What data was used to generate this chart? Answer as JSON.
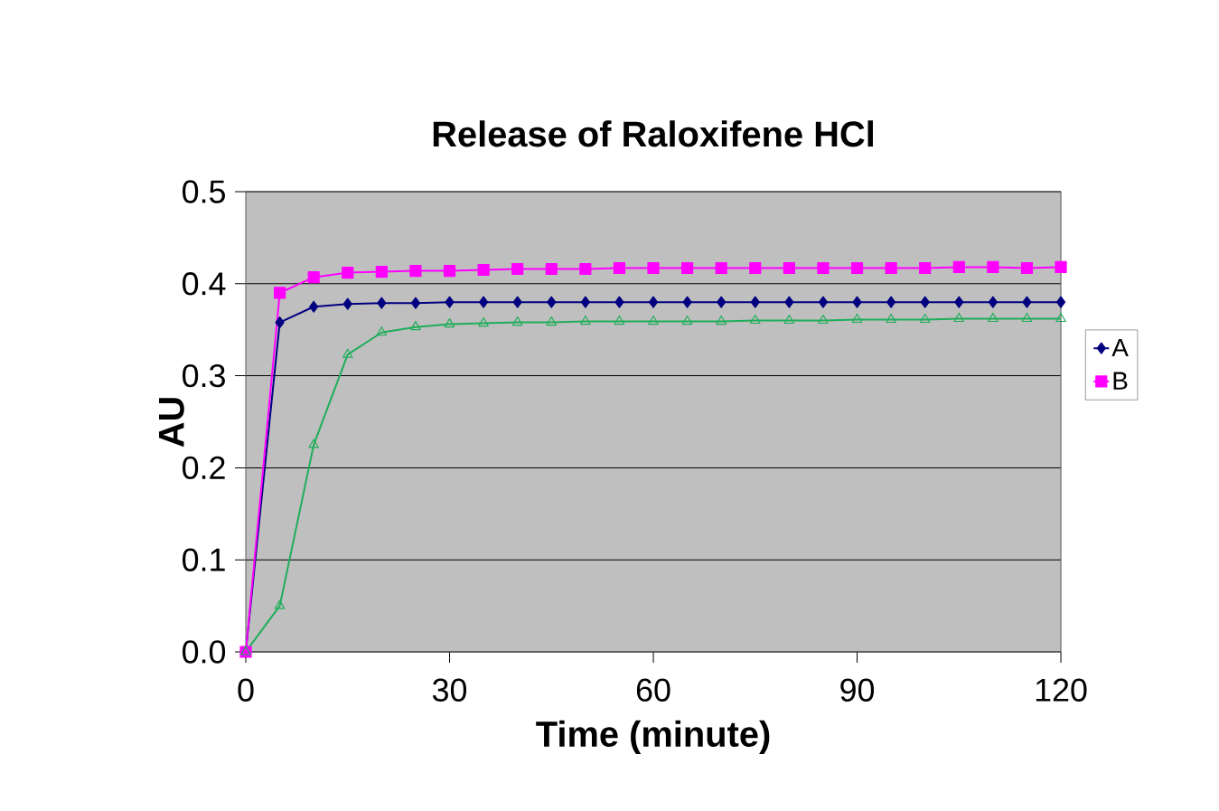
{
  "chart_data": {
    "type": "line",
    "title": "Release of Raloxifene HCl",
    "xlabel": "Time (minute)",
    "ylabel": "AU",
    "x": [
      0,
      5,
      10,
      15,
      20,
      25,
      30,
      35,
      40,
      45,
      50,
      55,
      60,
      65,
      70,
      75,
      80,
      85,
      90,
      95,
      100,
      105,
      110,
      115,
      120
    ],
    "series": [
      {
        "name": "A",
        "color": "#000080",
        "marker": "diamond",
        "values": [
          0,
          0.358,
          0.375,
          0.378,
          0.379,
          0.379,
          0.38,
          0.38,
          0.38,
          0.38,
          0.38,
          0.38,
          0.38,
          0.38,
          0.38,
          0.38,
          0.38,
          0.38,
          0.38,
          0.38,
          0.38,
          0.38,
          0.38,
          0.38,
          0.38
        ]
      },
      {
        "name": "B",
        "color": "#ff00ff",
        "marker": "square",
        "values": [
          0,
          0.39,
          0.407,
          0.412,
          0.413,
          0.414,
          0.414,
          0.415,
          0.416,
          0.416,
          0.416,
          0.417,
          0.417,
          0.417,
          0.417,
          0.417,
          0.417,
          0.417,
          0.417,
          0.417,
          0.417,
          0.418,
          0.418,
          0.417,
          0.418
        ]
      },
      {
        "color": "#1fae5a",
        "marker": "triangle",
        "values": [
          0,
          0.05,
          0.225,
          0.323,
          0.347,
          0.353,
          0.356,
          0.357,
          0.358,
          0.358,
          0.359,
          0.359,
          0.359,
          0.359,
          0.359,
          0.36,
          0.36,
          0.36,
          0.361,
          0.361,
          0.361,
          0.362,
          0.362,
          0.362,
          0.362
        ]
      }
    ],
    "xlim": [
      0,
      120
    ],
    "xticks": [
      0,
      30,
      60,
      90,
      120
    ],
    "ylim": [
      0,
      0.5
    ],
    "yticks": [
      {
        "value": 0,
        "label": "0.0"
      },
      {
        "value": 0.1,
        "label": "0.1"
      },
      {
        "value": 0.2,
        "label": "0.2"
      },
      {
        "value": 0.3,
        "label": "0.3"
      },
      {
        "value": 0.4,
        "label": "0.4"
      },
      {
        "value": 0.5,
        "label": "0.5"
      }
    ],
    "grid": "y",
    "legend": "right",
    "line_style": "solid"
  }
}
